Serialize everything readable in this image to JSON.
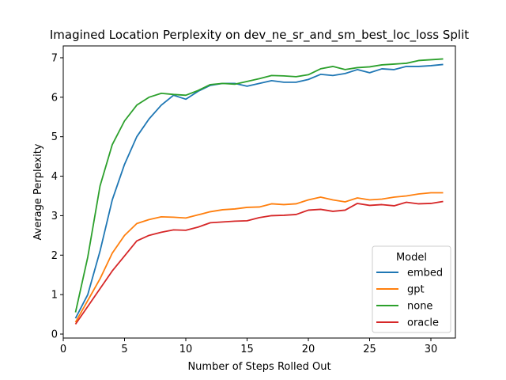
{
  "chart_data": {
    "type": "line",
    "title": "Imagined Location Perplexity on dev_ne_sr_and_sm_best_loc_loss Split",
    "xlabel": "Number of Steps Rolled Out",
    "ylabel": "Average Perplexity",
    "xlim": [
      0,
      32
    ],
    "ylim": [
      -0.1,
      7.3
    ],
    "xticks": [
      0,
      5,
      10,
      15,
      20,
      25,
      30
    ],
    "yticks": [
      0,
      1,
      2,
      3,
      4,
      5,
      6,
      7
    ],
    "grid": false,
    "legend": {
      "title": "Model",
      "placement": "lower-right"
    },
    "x": [
      1,
      2,
      3,
      4,
      5,
      6,
      7,
      8,
      9,
      10,
      11,
      12,
      13,
      14,
      15,
      16,
      17,
      18,
      19,
      20,
      21,
      22,
      23,
      24,
      25,
      26,
      27,
      28,
      29,
      30,
      31
    ],
    "series": [
      {
        "name": "embed",
        "color": "#1f77b4",
        "values": [
          0.4,
          1.0,
          2.1,
          3.4,
          4.3,
          5.0,
          5.45,
          5.8,
          6.05,
          5.95,
          6.15,
          6.3,
          6.35,
          6.35,
          6.28,
          6.35,
          6.42,
          6.38,
          6.38,
          6.45,
          6.58,
          6.55,
          6.6,
          6.7,
          6.62,
          6.72,
          6.7,
          6.78,
          6.78,
          6.8,
          6.83
        ]
      },
      {
        "name": "gpt",
        "color": "#ff7f0e",
        "values": [
          0.3,
          0.85,
          1.4,
          2.05,
          2.5,
          2.8,
          2.9,
          2.97,
          2.96,
          2.94,
          3.02,
          3.1,
          3.15,
          3.17,
          3.21,
          3.22,
          3.3,
          3.28,
          3.3,
          3.4,
          3.47,
          3.4,
          3.35,
          3.45,
          3.4,
          3.42,
          3.47,
          3.5,
          3.55,
          3.58,
          3.58
        ]
      },
      {
        "name": "none",
        "color": "#2ca02c",
        "values": [
          0.55,
          1.95,
          3.75,
          4.8,
          5.4,
          5.8,
          6.0,
          6.1,
          6.07,
          6.05,
          6.17,
          6.32,
          6.35,
          6.33,
          6.4,
          6.47,
          6.55,
          6.54,
          6.52,
          6.57,
          6.72,
          6.78,
          6.7,
          6.75,
          6.77,
          6.82,
          6.84,
          6.86,
          6.93,
          6.95,
          6.97
        ]
      },
      {
        "name": "oracle",
        "color": "#d62728",
        "values": [
          0.25,
          0.7,
          1.15,
          1.6,
          1.98,
          2.36,
          2.5,
          2.58,
          2.64,
          2.63,
          2.71,
          2.82,
          2.84,
          2.86,
          2.87,
          2.95,
          3.0,
          3.01,
          3.03,
          3.14,
          3.16,
          3.11,
          3.14,
          3.31,
          3.26,
          3.28,
          3.25,
          3.34,
          3.3,
          3.31,
          3.36
        ]
      }
    ]
  }
}
